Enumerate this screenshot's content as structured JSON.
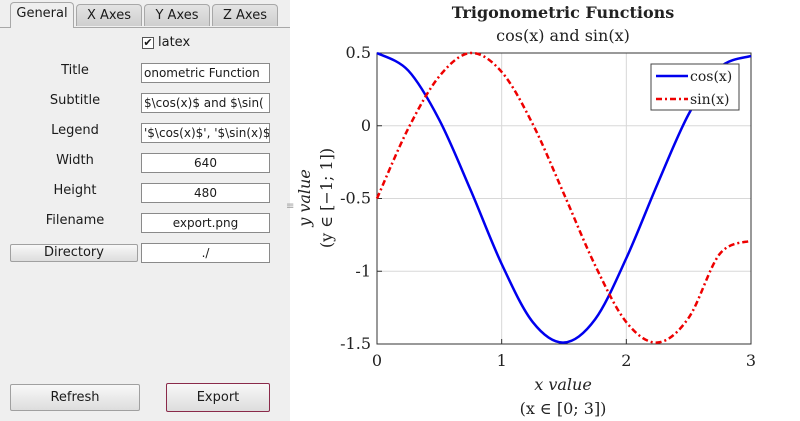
{
  "tabs": [
    {
      "label": "General",
      "active": true
    },
    {
      "label": "X Axes",
      "active": false
    },
    {
      "label": "Y Axes",
      "active": false
    },
    {
      "label": "Z Axes",
      "active": false
    }
  ],
  "general": {
    "latex_checked": true,
    "latex_label": "latex",
    "title_label": "Title",
    "title_value": "onometric Function",
    "subtitle_label": "Subtitle",
    "subtitle_value": "$\\cos(x)$ and $\\sin(",
    "legend_label": "Legend",
    "legend_value": "'$\\cos(x)$', '$\\sin(x)$",
    "width_label": "Width",
    "width_value": "640",
    "height_label": "Height",
    "height_value": "480",
    "filename_label": "Filename",
    "filename_value": "export.png",
    "directory_button": "Directory",
    "directory_value": "./"
  },
  "buttons": {
    "refresh": "Refresh",
    "export": "Export"
  },
  "chart_data": {
    "type": "line",
    "title": "Trigonometric Functions",
    "subtitle": "cos(x) and sin(x)",
    "xlabel": "x value",
    "xlabel_sub": "(x ∈ [0; 3])",
    "ylabel": "y value",
    "ylabel_sub": "(y ∈ [−1; 1])",
    "xlim": [
      0,
      3
    ],
    "ylim": [
      -1.5,
      0.5
    ],
    "xticks": [
      0,
      1,
      2,
      3
    ],
    "xtick_labels": [
      "0",
      "1",
      "2",
      "3"
    ],
    "yticks": [
      0.5,
      0,
      -0.5,
      -1,
      -1.5
    ],
    "ytick_labels": [
      "0.5",
      "0",
      "-0.5",
      "-1",
      "-1.5"
    ],
    "grid": true,
    "legend_position": "top-right",
    "series": [
      {
        "name": "cos(x)",
        "color": "#0000ee",
        "dash": "solid",
        "x": [
          0,
          0.25,
          0.5,
          0.75,
          1.0,
          1.25,
          1.5,
          1.75,
          2.0,
          2.25,
          2.5,
          2.75,
          3.0
        ],
        "y": [
          0.5,
          0.38,
          0.04,
          -0.44,
          -0.95,
          -1.35,
          -1.49,
          -1.33,
          -0.91,
          -0.4,
          0.08,
          0.4,
          0.48
        ]
      },
      {
        "name": "sin(x)",
        "color": "#ee0000",
        "dash": "dashdot",
        "x": [
          0,
          0.25,
          0.5,
          0.75,
          1.0,
          1.25,
          1.5,
          1.75,
          2.0,
          2.25,
          2.5,
          2.75,
          3.0
        ],
        "y": [
          -0.5,
          -0.02,
          0.34,
          0.5,
          0.37,
          0.01,
          -0.47,
          -0.96,
          -1.35,
          -1.49,
          -1.32,
          -0.88,
          -0.79
        ]
      }
    ]
  }
}
